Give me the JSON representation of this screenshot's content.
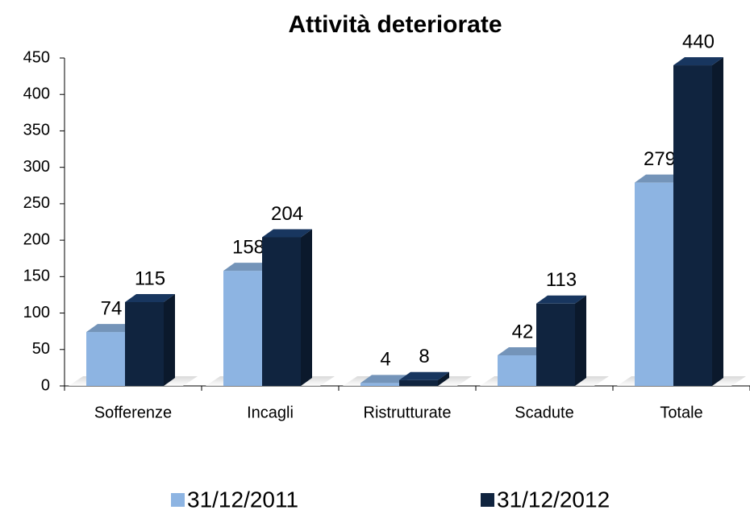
{
  "chart_data": {
    "type": "bar",
    "title": "Attività deteriorate",
    "categories": [
      "Sofferenze",
      "Incagli",
      "Ristrutturate",
      "Scadute",
      "Totale"
    ],
    "series": [
      {
        "name": "31/12/2011",
        "color": "#8db4e2",
        "values": [
          74,
          158,
          4,
          42,
          279
        ]
      },
      {
        "name": "31/12/2012",
        "color": "#10243f",
        "values": [
          115,
          204,
          8,
          113,
          440
        ]
      }
    ],
    "ylim": [
      0,
      450
    ],
    "yticks": [
      0,
      50,
      100,
      150,
      200,
      250,
      300,
      350,
      400,
      450
    ],
    "legend": "bottom"
  }
}
